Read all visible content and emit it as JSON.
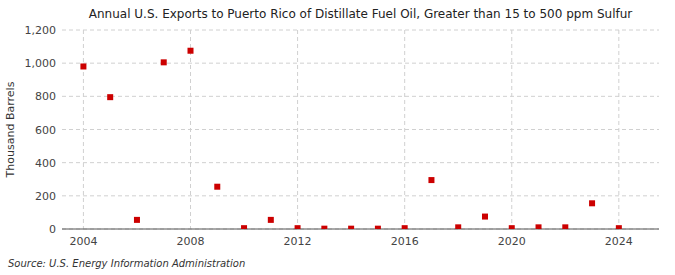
{
  "chart_data": {
    "type": "scatter",
    "title": "Annual U.S. Exports to Puerto Rico of Distillate Fuel Oil, Greater than 15 to 500 ppm Sulfur",
    "ylabel": "Thousand Barrels",
    "source": "Source: U.S. Energy Information Administration",
    "x": [
      2004,
      2005,
      2006,
      2007,
      2008,
      2009,
      2010,
      2011,
      2012,
      2013,
      2014,
      2015,
      2016,
      2017,
      2018,
      2019,
      2020,
      2021,
      2022,
      2023,
      2024
    ],
    "values": [
      980,
      795,
      55,
      1005,
      1075,
      255,
      5,
      55,
      5,
      2,
      2,
      2,
      5,
      295,
      10,
      75,
      5,
      10,
      10,
      155,
      5
    ],
    "color": "#cc0000",
    "marker": "square",
    "xlim": [
      2003.2,
      2025.5
    ],
    "ylim": [
      0,
      1200
    ],
    "xticks": [
      2004,
      2008,
      2012,
      2016,
      2020,
      2024
    ],
    "yticks": [
      0,
      200,
      400,
      600,
      800,
      {
        "value": 1000,
        "label": "1,000"
      },
      {
        "value": 1200,
        "label": "1,200"
      }
    ],
    "grid": true
  }
}
